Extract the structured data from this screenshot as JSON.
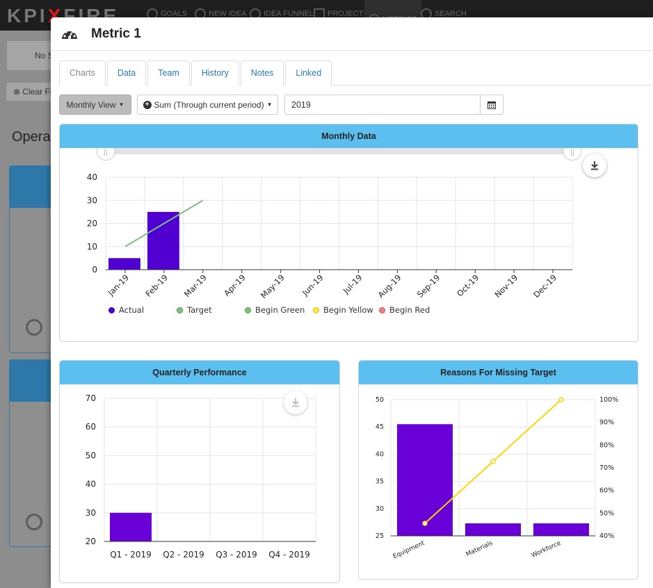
{
  "app": {
    "logo_left": "KPI",
    "logo_right": "FIRE",
    "nav": [
      {
        "label": "GOALS",
        "icon": "compass-icon"
      },
      {
        "label": "NEW IDEA",
        "icon": "lightbulb-icon"
      },
      {
        "label": "IDEA FUNNEL",
        "icon": "funnel-icon"
      },
      {
        "label": "PROJECTS",
        "icon": "projects-icon"
      },
      {
        "label": "METRICS",
        "icon": "gauge-icon"
      },
      {
        "label": "SEARCH",
        "icon": "search-icon"
      }
    ],
    "bg_button_1": "No S",
    "bg_button_2": "Clear Fi",
    "bg_title": "Operat"
  },
  "modal": {
    "title": "Metric 1",
    "tabs": [
      "Charts",
      "Data",
      "Team",
      "History",
      "Notes",
      "Linked"
    ],
    "active_tab": "Charts",
    "view_button": "Monthly View",
    "sum_button": "Sum (Through current period)",
    "year": "2019"
  },
  "colors": {
    "header": "#5bc0f0",
    "actual": "#5000d0",
    "target": "#7fbf7f",
    "begin_green": "#80c080",
    "begin_yellow": "#ffe64c",
    "begin_red": "#f08080",
    "pareto_bar": "#6a00d8",
    "pareto_line": "#ffd400"
  },
  "charts": [
    {
      "panel_title": "Monthly Data",
      "type": "bar",
      "categories": [
        "Jan-19",
        "Feb-19",
        "Mar-19",
        "Apr-19",
        "May-19",
        "Jun-19",
        "Jul-19",
        "Aug-19",
        "Sep-19",
        "Oct-19",
        "Nov-19",
        "Dec-19"
      ],
      "series": [
        {
          "name": "Actual",
          "type": "bar",
          "values": [
            5,
            25,
            null,
            null,
            null,
            null,
            null,
            null,
            null,
            null,
            null,
            null
          ]
        },
        {
          "name": "Target",
          "type": "line",
          "values": [
            10,
            20,
            30,
            null,
            null,
            null,
            null,
            null,
            null,
            null,
            null,
            null
          ]
        },
        {
          "name": "Begin Green",
          "values": []
        },
        {
          "name": "Begin Yellow",
          "values": []
        },
        {
          "name": "Begin Red",
          "values": []
        }
      ],
      "yticks": [
        0,
        10,
        20,
        30,
        40
      ],
      "ylim": [
        0,
        40
      ],
      "legend": "bottom"
    },
    {
      "panel_title": "Quarterly Performance",
      "type": "bar",
      "categories": [
        "Q1 - 2019",
        "Q2 - 2019",
        "Q3 - 2019",
        "Q4 - 2019"
      ],
      "values": [
        30,
        null,
        null,
        null
      ],
      "yticks": [
        20,
        30,
        40,
        50,
        60,
        70
      ],
      "ylim": [
        20,
        70
      ]
    },
    {
      "panel_title": "Reasons For Missing Target",
      "type": "bar",
      "categories": [
        "Equipment",
        "Materials",
        "Workforce"
      ],
      "values": [
        45.5,
        27.3,
        27.3
      ],
      "cumulative_percent": [
        45.5,
        72.8,
        100
      ],
      "yticks": [
        25,
        30,
        35,
        40,
        45,
        50
      ],
      "ylim": [
        25,
        50
      ],
      "y2ticks": [
        "40%",
        "50%",
        "60%",
        "70%",
        "80%",
        "90%",
        "100%"
      ],
      "y2lim": [
        40,
        100
      ]
    }
  ]
}
